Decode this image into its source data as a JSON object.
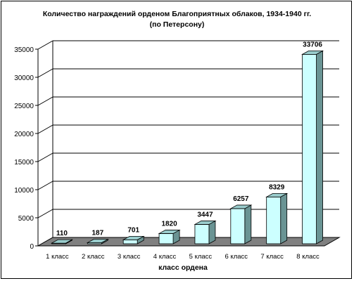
{
  "chart_data": {
    "type": "bar",
    "title": "Количество награждений орденом Благоприятных облаков, 1934-1940 гг.",
    "subtitle": "(по Петерсону)",
    "xlabel": "класс ордена",
    "ylabel": "",
    "categories": [
      "1 класс",
      "2 класс",
      "3 класс",
      "4 класс",
      "5 класс",
      "6 класс",
      "7 класс",
      "8 класс"
    ],
    "values": [
      110,
      187,
      701,
      1820,
      3447,
      6257,
      8329,
      33706
    ],
    "ylim": [
      0,
      35000
    ],
    "yticks": [
      "0",
      "5000",
      "10000",
      "15000",
      "20000",
      "25000",
      "30000",
      "35000"
    ],
    "grid": true,
    "legend": "none",
    "three_d": true,
    "colors": {
      "bar_front": "#ccffff",
      "bar_top": "#99cccc",
      "bar_side": "#6a9494",
      "floor": "#808080",
      "grid": "#000000"
    }
  }
}
